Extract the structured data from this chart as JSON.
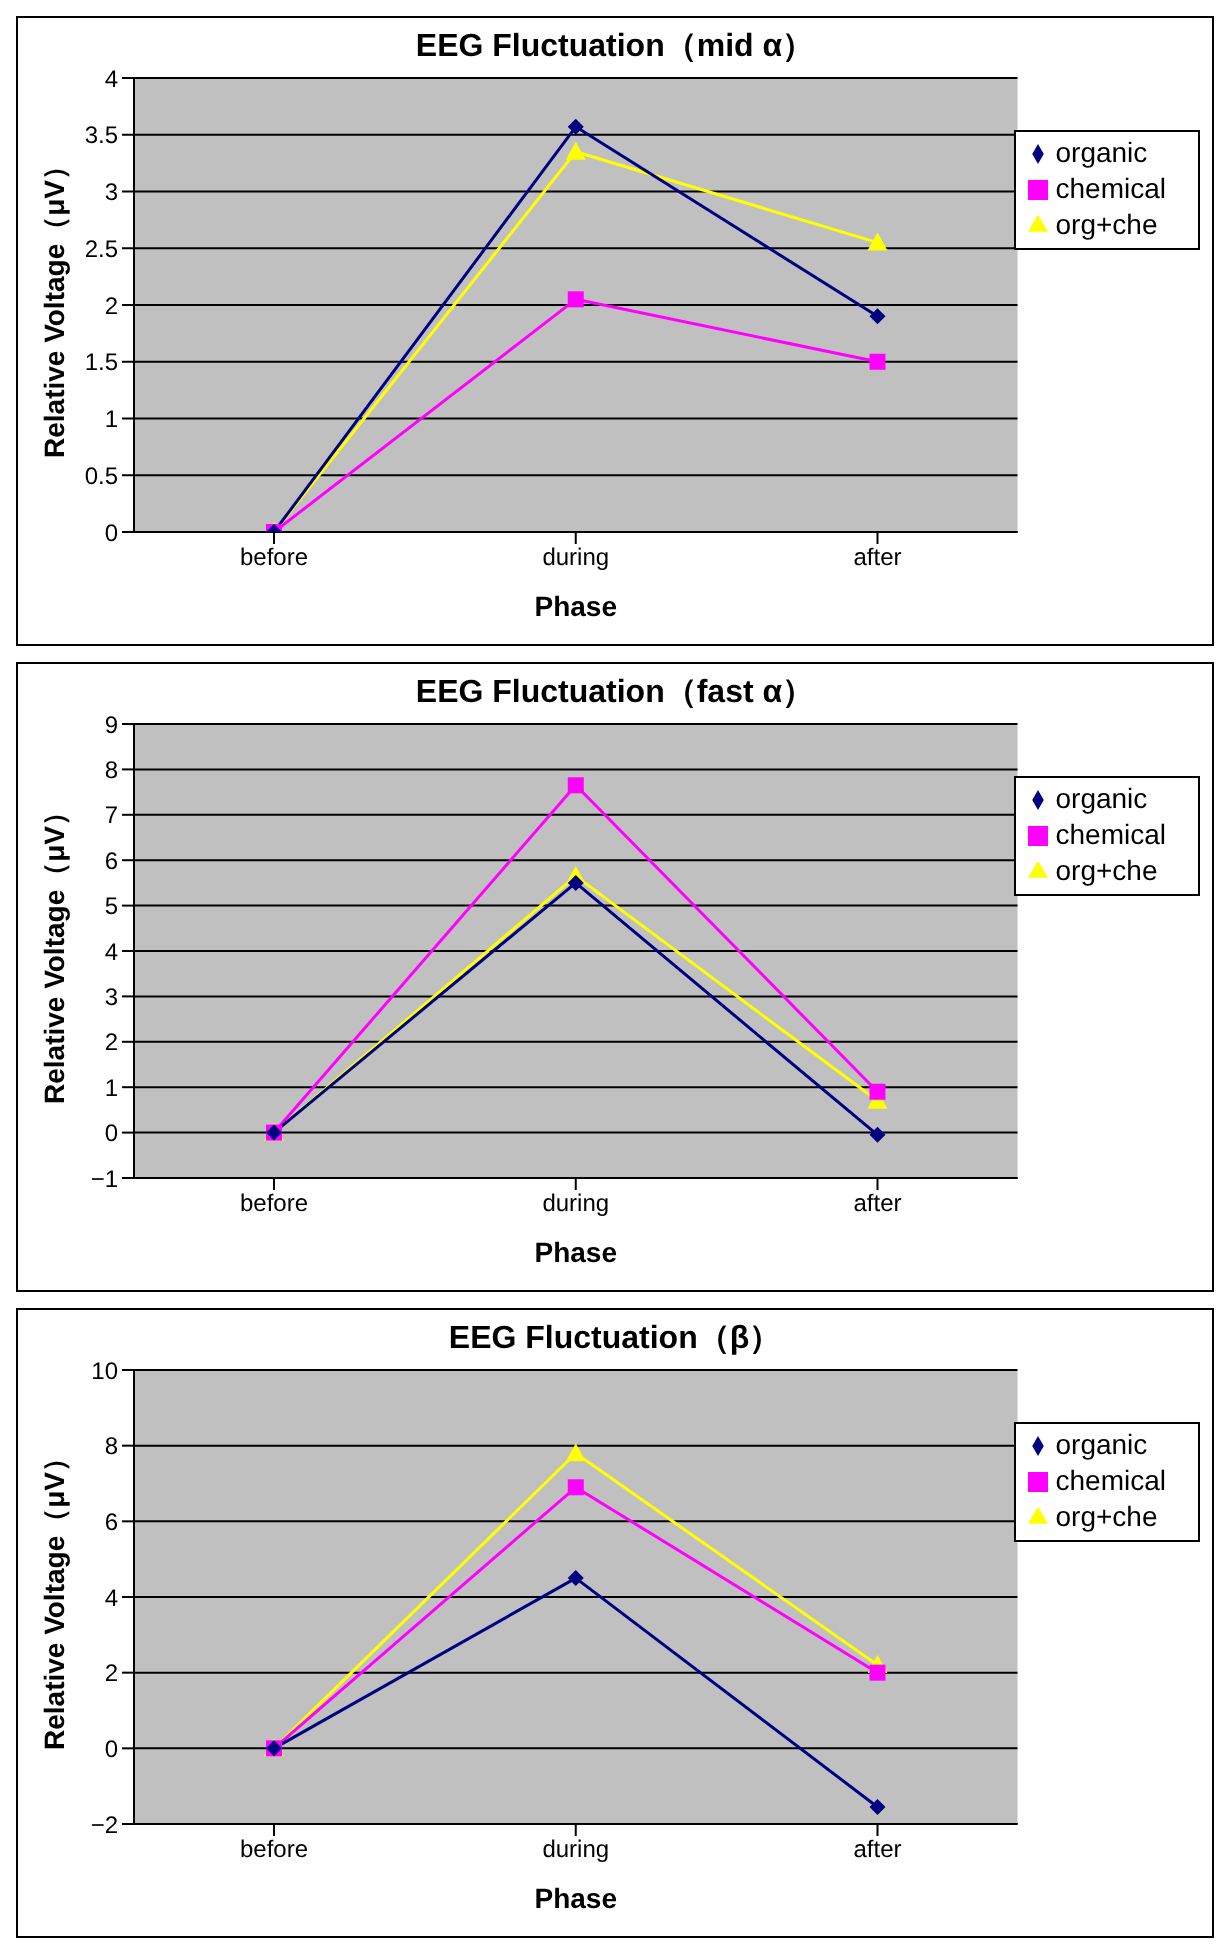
{
  "chart_data": [
    {
      "type": "line",
      "title": "EEG Fluctuation（mid α）",
      "xlabel": "Phase",
      "ylabel": "Relative Voltage（μV）",
      "categories": [
        "before",
        "during",
        "after"
      ],
      "series": [
        {
          "name": "organic",
          "color": "#000080",
          "marker": "diamond",
          "values": [
            0,
            3.57,
            1.9
          ]
        },
        {
          "name": "chemical",
          "color": "#ff00ff",
          "marker": "square",
          "values": [
            0,
            2.05,
            1.5
          ]
        },
        {
          "name": "org+che",
          "color": "#ffff00",
          "marker": "triangle",
          "values": [
            0,
            3.35,
            2.55
          ]
        }
      ],
      "ylim": [
        0,
        4
      ],
      "yticks": [
        0,
        0.5,
        1,
        1.5,
        2,
        2.5,
        3,
        3.5,
        4
      ],
      "grid": "y",
      "legend": "top right"
    },
    {
      "type": "line",
      "title": "EEG Fluctuation（fast α）",
      "xlabel": "Phase",
      "ylabel": "Relative Voltage（μV）",
      "categories": [
        "before",
        "during",
        "after"
      ],
      "series": [
        {
          "name": "organic",
          "color": "#000080",
          "marker": "diamond",
          "values": [
            0,
            5.5,
            -0.05
          ]
        },
        {
          "name": "chemical",
          "color": "#ff00ff",
          "marker": "square",
          "values": [
            0,
            7.65,
            0.9
          ]
        },
        {
          "name": "org+che",
          "color": "#ffff00",
          "marker": "triangle",
          "values": [
            0,
            5.65,
            0.7
          ]
        }
      ],
      "ylim": [
        -1,
        9
      ],
      "yticks": [
        -1,
        0,
        1,
        2,
        3,
        4,
        5,
        6,
        7,
        8,
        9
      ],
      "grid": "y",
      "legend": "top right"
    },
    {
      "type": "line",
      "title": "EEG Fluctuation（β）",
      "xlabel": "Phase",
      "ylabel": "Relative Voltage（μV）",
      "categories": [
        "before",
        "during",
        "after"
      ],
      "series": [
        {
          "name": "organic",
          "color": "#000080",
          "marker": "diamond",
          "values": [
            0,
            4.5,
            -1.55
          ]
        },
        {
          "name": "chemical",
          "color": "#ff00ff",
          "marker": "square",
          "values": [
            0,
            6.9,
            2.0
          ]
        },
        {
          "name": "org+che",
          "color": "#ffff00",
          "marker": "triangle",
          "values": [
            0,
            7.8,
            2.2
          ]
        }
      ],
      "ylim": [
        -2,
        10
      ],
      "yticks": [
        -2,
        0,
        2,
        4,
        6,
        8,
        10
      ],
      "grid": "y",
      "legend": "top right"
    }
  ]
}
